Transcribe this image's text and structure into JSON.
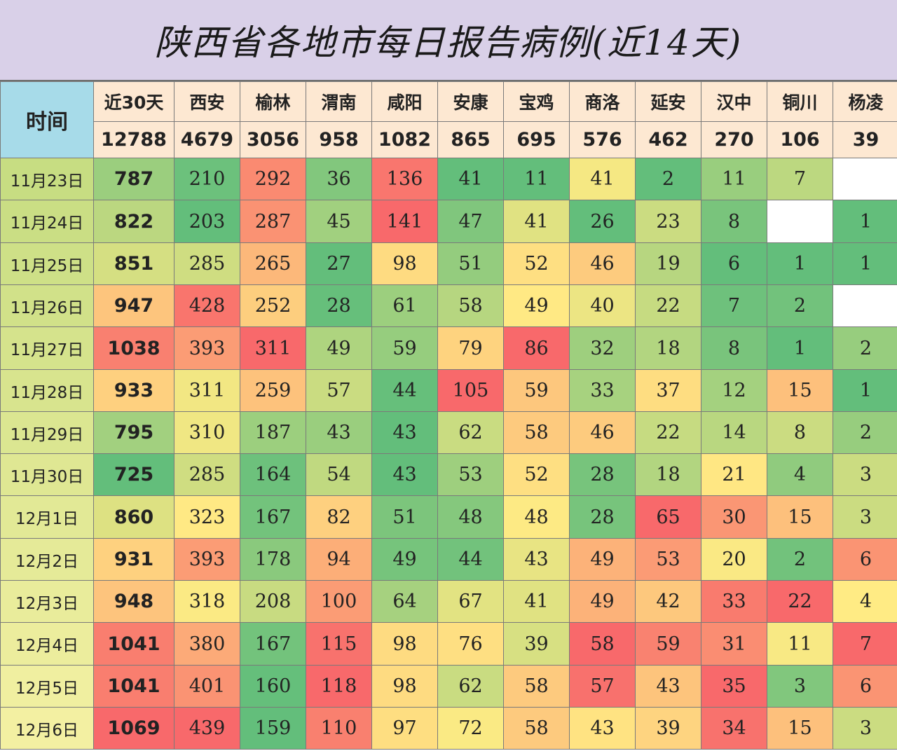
{
  "title": "陕西省各地市每日报告病例(近14天)",
  "chart_data": {
    "type": "heatmap",
    "corner_label": "时间",
    "columns": [
      {
        "name": "近30天",
        "total": "12788"
      },
      {
        "name": "西安",
        "total": "4679"
      },
      {
        "name": "榆林",
        "total": "3056"
      },
      {
        "name": "渭南",
        "total": "958"
      },
      {
        "name": "咸阳",
        "total": "1082"
      },
      {
        "name": "安康",
        "total": "865"
      },
      {
        "name": "宝鸡",
        "total": "695"
      },
      {
        "name": "商洛",
        "total": "576"
      },
      {
        "name": "延安",
        "total": "462"
      },
      {
        "name": "汉中",
        "total": "270"
      },
      {
        "name": "铜川",
        "total": "106"
      },
      {
        "name": "杨凌",
        "total": "39"
      }
    ],
    "rows": [
      {
        "date": "11月23日",
        "values": [
          787,
          210,
          292,
          36,
          136,
          41,
          11,
          41,
          2,
          11,
          7,
          null
        ]
      },
      {
        "date": "11月24日",
        "values": [
          822,
          203,
          287,
          45,
          141,
          47,
          41,
          26,
          23,
          8,
          null,
          1
        ]
      },
      {
        "date": "11月25日",
        "values": [
          851,
          285,
          265,
          27,
          98,
          51,
          52,
          46,
          19,
          6,
          1,
          1
        ]
      },
      {
        "date": "11月26日",
        "values": [
          947,
          428,
          252,
          28,
          61,
          58,
          49,
          40,
          22,
          7,
          2,
          null
        ]
      },
      {
        "date": "11月27日",
        "values": [
          1038,
          393,
          311,
          49,
          59,
          79,
          86,
          32,
          18,
          8,
          1,
          2
        ]
      },
      {
        "date": "11月28日",
        "values": [
          933,
          311,
          259,
          57,
          44,
          105,
          59,
          33,
          37,
          12,
          15,
          1
        ]
      },
      {
        "date": "11月29日",
        "values": [
          795,
          310,
          187,
          43,
          43,
          62,
          58,
          46,
          22,
          14,
          8,
          2
        ]
      },
      {
        "date": "11月30日",
        "values": [
          725,
          285,
          164,
          54,
          43,
          53,
          52,
          28,
          18,
          21,
          4,
          3
        ]
      },
      {
        "date": "12月1日",
        "values": [
          860,
          323,
          167,
          82,
          51,
          48,
          48,
          28,
          65,
          30,
          15,
          3
        ]
      },
      {
        "date": "12月2日",
        "values": [
          931,
          393,
          178,
          94,
          49,
          44,
          43,
          49,
          53,
          20,
          2,
          6
        ]
      },
      {
        "date": "12月3日",
        "values": [
          948,
          318,
          208,
          100,
          64,
          67,
          41,
          49,
          42,
          33,
          22,
          4
        ]
      },
      {
        "date": "12月4日",
        "values": [
          1041,
          380,
          167,
          115,
          98,
          76,
          39,
          58,
          59,
          31,
          11,
          7
        ]
      },
      {
        "date": "12月5日",
        "values": [
          1041,
          401,
          160,
          118,
          98,
          62,
          58,
          57,
          43,
          35,
          3,
          6
        ]
      },
      {
        "date": "12月6日",
        "values": [
          1069,
          439,
          159,
          110,
          97,
          72,
          58,
          43,
          39,
          34,
          15,
          3
        ]
      }
    ],
    "colors": {
      "low": "#63be7b",
      "mid": "#ffeb84",
      "high": "#f8696b",
      "empty": "#ffffff",
      "date_low": "#c7dd82",
      "date_high": "#f3f0a2"
    }
  }
}
